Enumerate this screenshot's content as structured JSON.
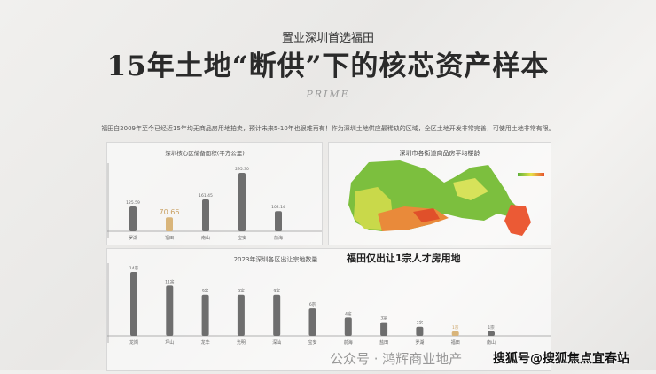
{
  "header": {
    "subtitle": "置业深圳首选福田",
    "title": "15年土地“断供”下的核芯资产样本",
    "logo": "PRIME",
    "description": "福田自2009年至今已经近15年均无商品房用地拍卖，预计未来5-10年也很难再有！作为深圳土地供应最稀缺的区域，全区土地开发非常完善，可使用土地非常有限。"
  },
  "map": {
    "title": "深圳市各街道商品房平均楼龄"
  },
  "colors": {
    "bar": "#6e6e6e",
    "highlight": "#d9b57a"
  },
  "chart_data": [
    {
      "type": "bar",
      "title": "深圳核心区储备面积(平方公里)",
      "categories": [
        "罗湖",
        "福田",
        "南山",
        "宝安",
        "前海"
      ],
      "values": [
        125.59,
        70.66,
        161.45,
        295.3,
        102.14
      ],
      "value_labels": [
        "125.59",
        "70.66",
        "161.45",
        "295.30",
        "102.14"
      ],
      "highlight": "福田",
      "ylim": [
        0,
        300
      ]
    },
    {
      "type": "bar",
      "title": "2023年深圳各区出让宗地数量",
      "annotation": "福田仅出让1宗人才房用地",
      "categories": [
        "龙岗",
        "坪山",
        "龙华",
        "光明",
        "深汕",
        "宝安",
        "前海",
        "盐田",
        "罗湖",
        "福田",
        "南山"
      ],
      "values": [
        14,
        11,
        9,
        9,
        9,
        6,
        4,
        3,
        2,
        1,
        1
      ],
      "value_labels": [
        "14宗",
        "11宗",
        "9宗",
        "9宗",
        "9宗",
        "6宗",
        "4宗",
        "3宗",
        "2宗",
        "1宗",
        "1宗"
      ],
      "highlight": "福田",
      "ylim": [
        0,
        14
      ]
    }
  ],
  "watermarks": {
    "wechat": "公众号 · 鸿辉商业地产",
    "sohu": "搜狐号@搜狐焦点宜春站"
  }
}
